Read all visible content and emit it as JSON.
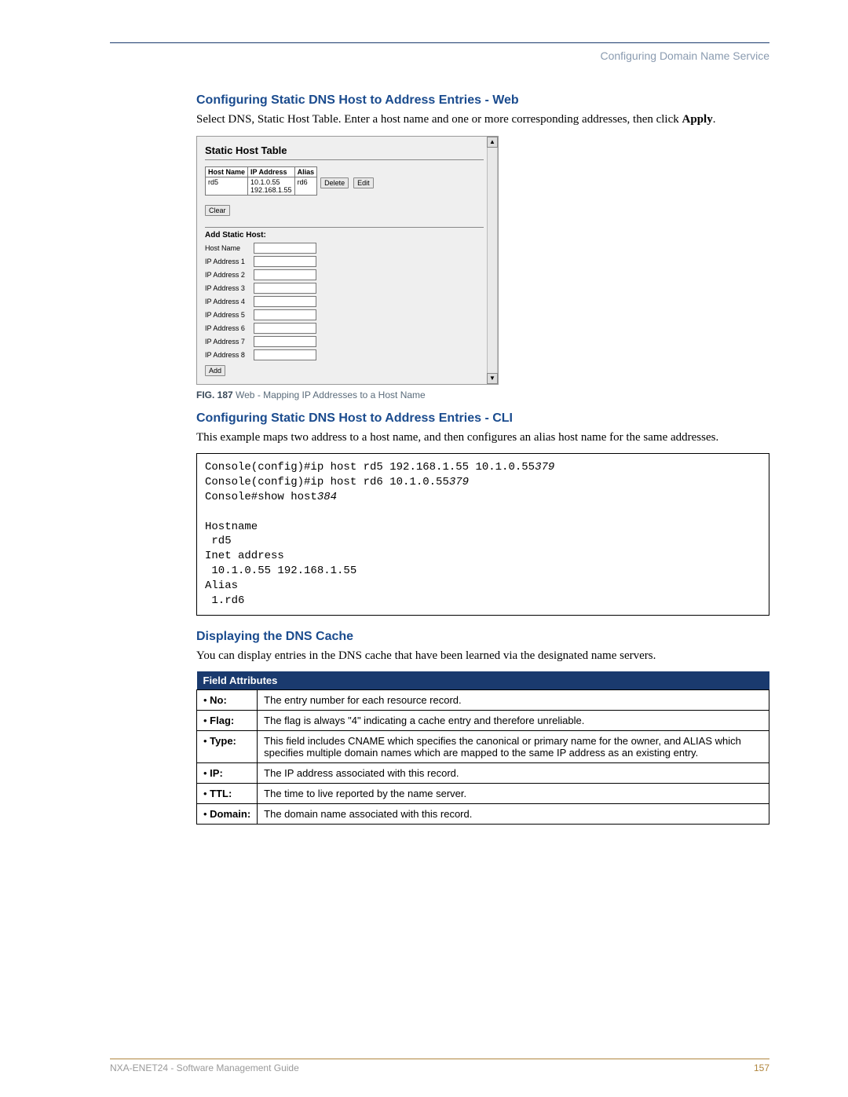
{
  "header": {
    "section": "Configuring Domain Name Service"
  },
  "s1": {
    "title": "Configuring Static DNS Host to Address Entries - Web",
    "intro_a": "Select DNS, Static Host Table. Enter a host name and one or more corresponding addresses, then click ",
    "intro_b": "Apply",
    "intro_c": "."
  },
  "shot": {
    "title": "Static Host Table",
    "cols": {
      "c1": "Host Name",
      "c2": "IP Address",
      "c3": "Alias"
    },
    "row": {
      "host": "rd5",
      "ips": "10.1.0.55\n192.168.1.55",
      "alias": "rd6"
    },
    "btn_delete": "Delete",
    "btn_edit": "Edit",
    "btn_clear": "Clear",
    "add_heading": "Add Static Host:",
    "labels": {
      "hn": "Host Name",
      "ip1": "IP Address 1",
      "ip2": "IP Address 2",
      "ip3": "IP Address 3",
      "ip4": "IP Address 4",
      "ip5": "IP Address 5",
      "ip6": "IP Address 6",
      "ip7": "IP Address 7",
      "ip8": "IP Address 8"
    },
    "btn_add": "Add"
  },
  "caption": {
    "fig": "FIG. 187",
    "text": "  Web - Mapping IP Addresses to a Host Name"
  },
  "s2": {
    "title": "Configuring Static DNS Host to Address Entries - CLI",
    "intro": "This example maps two address to a host name, and then configures an alias host name for the same addresses."
  },
  "code": {
    "l1a": "Console(config)#ip host rd5 192.168.1.55 10.1.0.55",
    "l1b": "379",
    "l2a": "Console(config)#ip host rd6 10.1.0.55",
    "l2b": "379",
    "l3a": "Console#show host",
    "l3b": "384",
    "l4": "",
    "l5": "Hostname",
    "l6": " rd5",
    "l7": "Inet address",
    "l8": " 10.1.0.55 192.168.1.55",
    "l9": "Alias",
    "l10": " 1.rd6"
  },
  "s3": {
    "title": "Displaying the DNS Cache",
    "intro": "You can display entries in the DNS cache that have been learned via the designated name servers."
  },
  "fa": {
    "header": "Field Attributes",
    "rows": [
      {
        "k": "No",
        "v": "The entry number for each resource record."
      },
      {
        "k": "Flag",
        "v": "The flag is always \"4\" indicating a cache entry and therefore unreliable."
      },
      {
        "k": "Type",
        "v": "This field includes CNAME which specifies the canonical or primary name for the owner, and ALIAS which specifies multiple domain names which are mapped to the same IP address as an existing entry."
      },
      {
        "k": "IP",
        "v": "The IP address associated with this record."
      },
      {
        "k": "TTL",
        "v": "The time to live reported by the name server."
      },
      {
        "k": "Domain",
        "v": "The domain name associated with this record."
      }
    ]
  },
  "footer": {
    "left": "NXA-ENET24 - Software Management Guide",
    "page": "157"
  }
}
